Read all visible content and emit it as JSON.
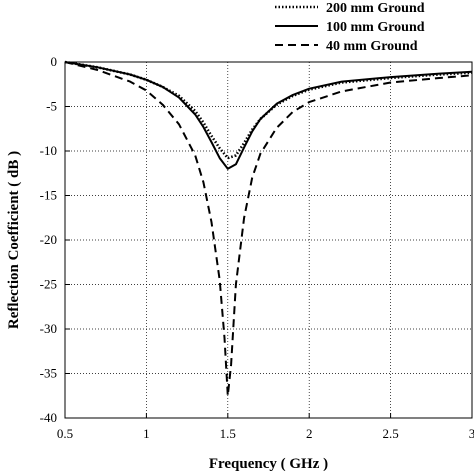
{
  "chart_data": {
    "type": "line",
    "xlabel": "Frequency ( GHz )",
    "ylabel": "Reflection Coefficient ( dB )",
    "xlim": [
      0.5,
      3
    ],
    "ylim": [
      -40,
      0
    ],
    "xticks": [
      "0.5",
      "1",
      "1.5",
      "2",
      "2.5",
      "3"
    ],
    "yticks": [
      "0",
      "-5",
      "-10",
      "-15",
      "-20",
      "-25",
      "-30",
      "-35",
      "-40"
    ],
    "grid": true,
    "legend_position": "top-right",
    "series": [
      {
        "name": "200 mm Ground",
        "style": "dotted",
        "color": "#000000",
        "x": [
          0.5,
          0.7,
          0.9,
          1.0,
          1.1,
          1.2,
          1.3,
          1.35,
          1.4,
          1.45,
          1.5,
          1.55,
          1.6,
          1.65,
          1.7,
          1.8,
          1.9,
          2.0,
          2.2,
          2.5,
          2.8,
          3.0
        ],
        "y": [
          0,
          -0.6,
          -1.4,
          -2.0,
          -2.8,
          -3.8,
          -5.5,
          -6.8,
          -8.3,
          -9.7,
          -10.8,
          -10.5,
          -9.1,
          -7.6,
          -6.4,
          -4.8,
          -3.8,
          -3.1,
          -2.3,
          -1.8,
          -1.4,
          -1.2
        ]
      },
      {
        "name": "100 mm Ground",
        "style": "solid",
        "color": "#000000",
        "x": [
          0.5,
          0.7,
          0.9,
          1.0,
          1.1,
          1.2,
          1.3,
          1.35,
          1.4,
          1.45,
          1.5,
          1.55,
          1.6,
          1.65,
          1.7,
          1.8,
          1.9,
          2.0,
          2.2,
          2.5,
          2.8,
          3.0
        ],
        "y": [
          0,
          -0.6,
          -1.4,
          -2.0,
          -2.8,
          -4.0,
          -5.9,
          -7.3,
          -9.0,
          -10.8,
          -12.0,
          -11.5,
          -9.6,
          -7.8,
          -6.4,
          -4.7,
          -3.7,
          -3.0,
          -2.2,
          -1.7,
          -1.3,
          -1.1
        ]
      },
      {
        "name": "40 mm Ground",
        "style": "dashed",
        "color": "#000000",
        "x": [
          0.5,
          0.7,
          0.9,
          1.0,
          1.1,
          1.2,
          1.3,
          1.35,
          1.4,
          1.45,
          1.48,
          1.5,
          1.52,
          1.55,
          1.6,
          1.65,
          1.7,
          1.8,
          1.9,
          2.0,
          2.2,
          2.5,
          2.8,
          3.0
        ],
        "y": [
          0,
          -0.9,
          -2.2,
          -3.2,
          -4.8,
          -7.0,
          -10.5,
          -13.5,
          -18.0,
          -24.5,
          -31.0,
          -37.5,
          -34.0,
          -25.0,
          -17.5,
          -13.0,
          -10.3,
          -7.4,
          -5.6,
          -4.5,
          -3.3,
          -2.3,
          -1.8,
          -1.5
        ]
      }
    ]
  }
}
